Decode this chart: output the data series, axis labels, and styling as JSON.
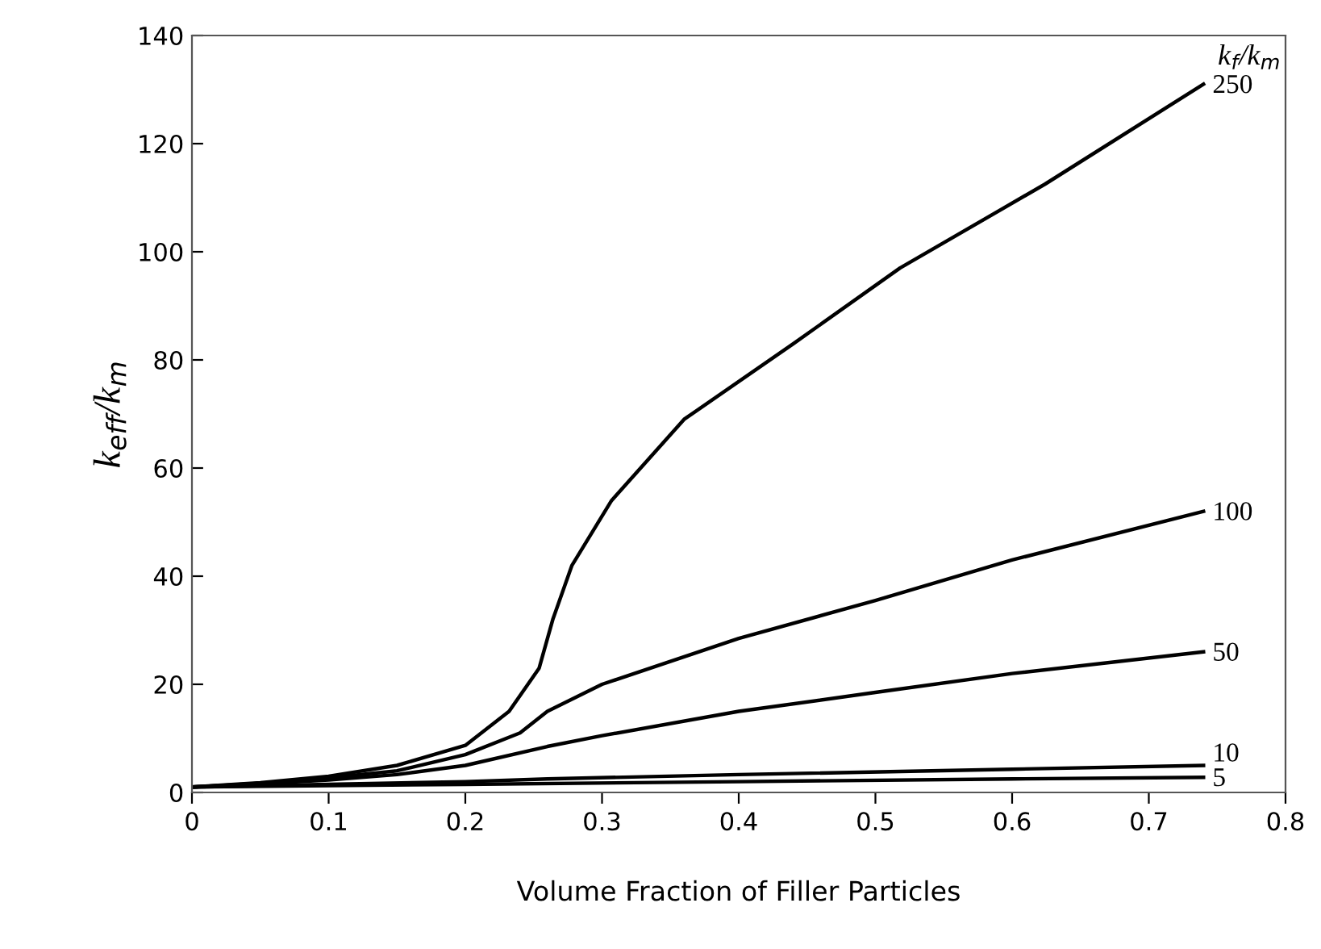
{
  "chart_data": {
    "type": "line",
    "xlabel": "Volume Fraction of Filler Particles",
    "ylabel": "k$_{eff}$/k$_{m}$",
    "legend_title": "k$_{f}$/k$_{m}$",
    "xlim": [
      0,
      0.8
    ],
    "xticks": [
      0,
      0.1,
      0.2,
      0.3,
      0.4,
      0.5,
      0.6,
      0.7,
      0.8
    ],
    "ylim": [
      0,
      140
    ],
    "yticks": [
      0,
      20,
      40,
      60,
      80,
      100,
      120,
      140
    ],
    "grid": false,
    "legend": false,
    "marker": "none",
    "line_style": "solid",
    "series": [
      {
        "name": "250",
        "color": "#000000",
        "x": [
          0,
          0.05,
          0.1,
          0.15,
          0.2,
          0.232,
          0.254,
          0.264,
          0.278,
          0.307,
          0.36,
          0.44,
          0.518,
          0.624,
          0.74
        ],
        "values": [
          1,
          1.8,
          3,
          5,
          8.7,
          15,
          23,
          32,
          42,
          54,
          69,
          83,
          97,
          112.5,
          131
        ]
      },
      {
        "name": "100",
        "color": "#000000",
        "x": [
          0,
          0.05,
          0.1,
          0.15,
          0.2,
          0.24,
          0.26,
          0.3,
          0.4,
          0.5,
          0.6,
          0.74
        ],
        "values": [
          1,
          1.7,
          2.7,
          4,
          7,
          11,
          15,
          20,
          28.5,
          35.5,
          43,
          52
        ]
      },
      {
        "name": "50",
        "color": "#000000",
        "x": [
          0,
          0.05,
          0.1,
          0.15,
          0.2,
          0.26,
          0.3,
          0.4,
          0.5,
          0.6,
          0.74
        ],
        "values": [
          1,
          1.6,
          2.3,
          3.3,
          5,
          8.5,
          10.5,
          15,
          18.5,
          22,
          26
        ]
      },
      {
        "name": "10",
        "color": "#000000",
        "x": [
          0,
          0.1,
          0.2,
          0.26,
          0.4,
          0.6,
          0.74
        ],
        "values": [
          1,
          1.5,
          2,
          2.5,
          3.3,
          4.3,
          5
        ]
      },
      {
        "name": "5",
        "color": "#000000",
        "x": [
          0,
          0.2,
          0.4,
          0.6,
          0.74
        ],
        "values": [
          1,
          1.5,
          2,
          2.5,
          2.8
        ]
      }
    ]
  }
}
